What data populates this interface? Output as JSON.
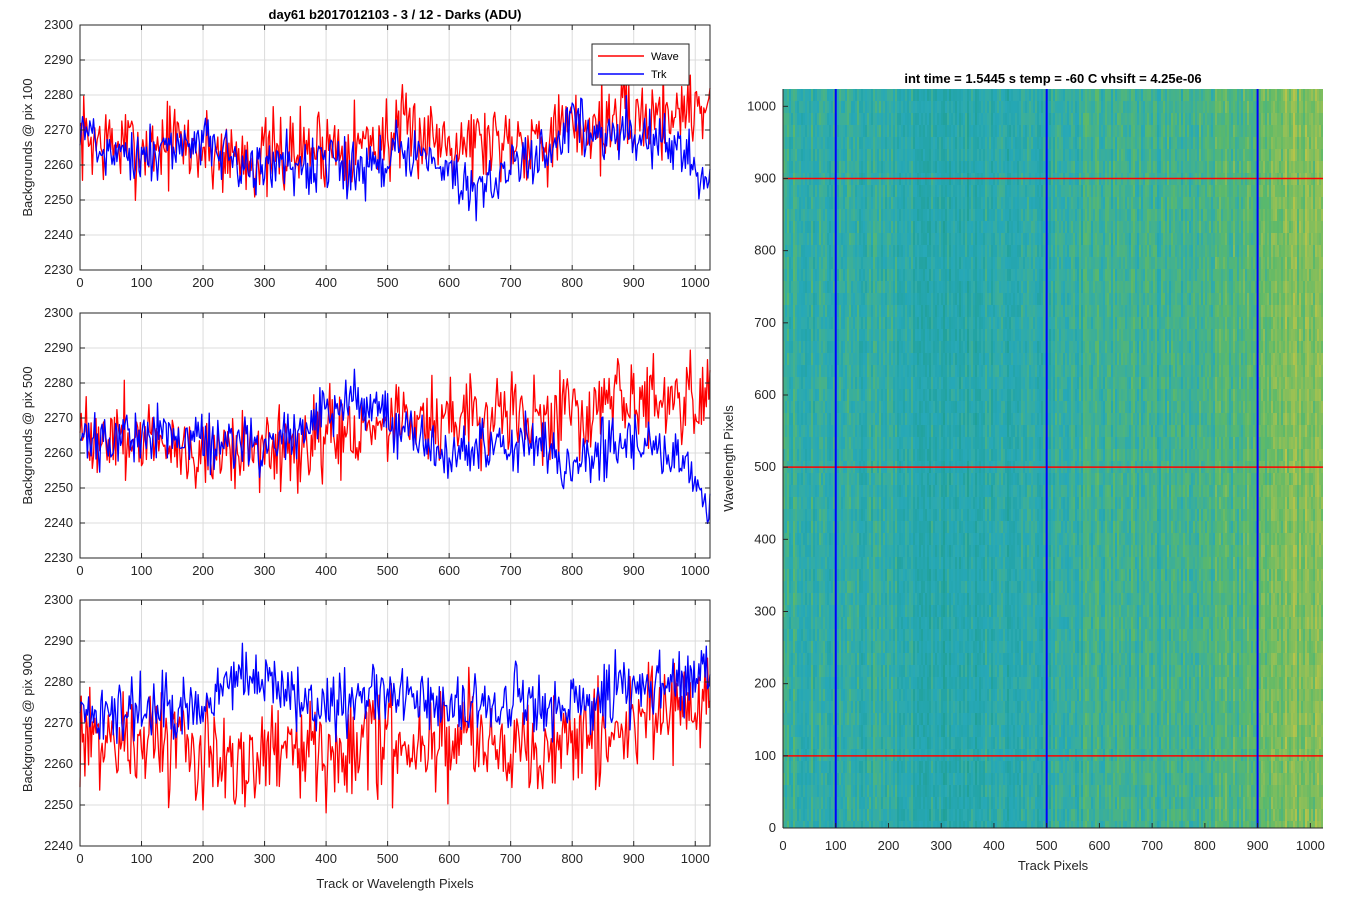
{
  "figure": {
    "title": "day61 b2017012103 - 3 / 12 - Darks (ADU)",
    "xlabel_bottom": "Track or Wavelength Pixels"
  },
  "legend": {
    "items": [
      {
        "label": "Wave",
        "color": "#ff0000"
      },
      {
        "label": "Trk",
        "color": "#0000ff"
      }
    ],
    "placement": "top-right"
  },
  "chart_data": [
    {
      "type": "line",
      "ylabel": "Backgrounds @ pix 100",
      "xlim": [
        0,
        1024
      ],
      "ylim": [
        2230,
        2300
      ],
      "xticks": [
        0,
        100,
        200,
        300,
        400,
        500,
        600,
        700,
        800,
        900,
        1000
      ],
      "yticks": [
        2230,
        2240,
        2250,
        2260,
        2270,
        2280,
        2290,
        2300
      ],
      "grid": true,
      "series": [
        {
          "name": "Wave",
          "color": "#ff0000",
          "x": [
            0,
            50,
            100,
            150,
            200,
            250,
            300,
            350,
            400,
            450,
            500,
            550,
            600,
            650,
            700,
            750,
            800,
            850,
            900,
            950,
            1000,
            1020
          ],
          "values": [
            2268,
            2266,
            2265,
            2267,
            2264,
            2263,
            2262,
            2264,
            2266,
            2266,
            2268,
            2269,
            2268,
            2267,
            2268,
            2268,
            2270,
            2272,
            2273,
            2275,
            2277,
            2278
          ],
          "noise": 6
        },
        {
          "name": "Trk",
          "color": "#0000ff",
          "x": [
            0,
            50,
            100,
            150,
            200,
            250,
            300,
            350,
            400,
            450,
            500,
            550,
            600,
            650,
            700,
            750,
            800,
            850,
            900,
            950,
            1000,
            1020
          ],
          "values": [
            2270,
            2264,
            2262,
            2265,
            2266,
            2263,
            2260,
            2258,
            2262,
            2258,
            2262,
            2264,
            2257,
            2250,
            2262,
            2262,
            2272,
            2266,
            2270,
            2266,
            2260,
            2258
          ],
          "noise": 4
        }
      ]
    },
    {
      "type": "line",
      "ylabel": "Backgrounds @ pix 500",
      "xlim": [
        0,
        1024
      ],
      "ylim": [
        2230,
        2300
      ],
      "xticks": [
        0,
        100,
        200,
        300,
        400,
        500,
        600,
        700,
        800,
        900,
        1000
      ],
      "yticks": [
        2230,
        2240,
        2250,
        2260,
        2270,
        2280,
        2290,
        2300
      ],
      "grid": true,
      "series": [
        {
          "name": "Wave",
          "color": "#ff0000",
          "x": [
            0,
            50,
            100,
            150,
            200,
            250,
            300,
            350,
            400,
            450,
            500,
            550,
            600,
            650,
            700,
            750,
            800,
            850,
            900,
            950,
            1000,
            1020
          ],
          "values": [
            2265,
            2265,
            2264,
            2262,
            2262,
            2262,
            2262,
            2263,
            2265,
            2266,
            2268,
            2270,
            2270,
            2269,
            2270,
            2270,
            2271,
            2272,
            2273,
            2275,
            2276,
            2276
          ],
          "noise": 6
        },
        {
          "name": "Trk",
          "color": "#0000ff",
          "x": [
            0,
            50,
            100,
            150,
            200,
            250,
            300,
            350,
            400,
            450,
            500,
            550,
            600,
            650,
            700,
            750,
            800,
            850,
            900,
            950,
            1000,
            1020
          ],
          "values": [
            2262,
            2263,
            2265,
            2266,
            2264,
            2263,
            2260,
            2265,
            2272,
            2275,
            2270,
            2265,
            2258,
            2262,
            2262,
            2262,
            2255,
            2262,
            2263,
            2262,
            2252,
            2245
          ],
          "noise": 4
        }
      ]
    },
    {
      "type": "line",
      "ylabel": "Backgrounds @ pix 900",
      "xlim": [
        0,
        1024
      ],
      "ylim": [
        2240,
        2300
      ],
      "xticks": [
        0,
        100,
        200,
        300,
        400,
        500,
        600,
        700,
        800,
        900,
        1000
      ],
      "yticks": [
        2240,
        2250,
        2260,
        2270,
        2280,
        2290,
        2300
      ],
      "grid": true,
      "series": [
        {
          "name": "Wave",
          "color": "#ff0000",
          "x": [
            0,
            50,
            100,
            150,
            200,
            250,
            300,
            350,
            400,
            450,
            500,
            550,
            600,
            650,
            700,
            750,
            800,
            850,
            900,
            950,
            1000,
            1020
          ],
          "values": [
            2268,
            2266,
            2265,
            2264,
            2263,
            2262,
            2262,
            2263,
            2264,
            2265,
            2266,
            2266,
            2266,
            2266,
            2264,
            2262,
            2266,
            2268,
            2270,
            2272,
            2274,
            2276
          ],
          "noise": 6
        },
        {
          "name": "Trk",
          "color": "#0000ff",
          "x": [
            0,
            50,
            100,
            150,
            200,
            250,
            300,
            350,
            400,
            450,
            500,
            550,
            600,
            650,
            700,
            750,
            800,
            850,
            900,
            950,
            1000,
            1020
          ],
          "values": [
            2272,
            2272,
            2274,
            2272,
            2272,
            2284,
            2280,
            2276,
            2274,
            2275,
            2278,
            2276,
            2273,
            2275,
            2276,
            2274,
            2274,
            2276,
            2278,
            2280,
            2282,
            2284
          ],
          "noise": 4
        }
      ]
    },
    {
      "type": "heatmap",
      "title": "int time = 1.5445 s    temp = -60 C    vhsift = 4.25e-06",
      "xlabel": "Track Pixels",
      "ylabel": "Wavelength Pixels",
      "xlim": [
        0,
        1024
      ],
      "ylim": [
        0,
        1024
      ],
      "xticks": [
        0,
        100,
        200,
        300,
        400,
        500,
        600,
        700,
        800,
        900,
        1000
      ],
      "yticks": [
        0,
        100,
        200,
        300,
        400,
        500,
        600,
        700,
        800,
        900,
        1000
      ],
      "colormap": [
        "#1f9e89",
        "#26a8b8",
        "#5cb96a",
        "#b6c44a"
      ],
      "column_profile": {
        "x": [
          0,
          100,
          200,
          300,
          400,
          500,
          600,
          700,
          800,
          900,
          950,
          1024
        ],
        "level": [
          0.45,
          0.4,
          0.38,
          0.3,
          0.33,
          0.35,
          0.5,
          0.45,
          0.55,
          0.65,
          0.8,
          0.8
        ]
      },
      "vertical_markers": {
        "color": "#0000ff",
        "x": [
          100,
          500,
          900
        ]
      },
      "horizontal_markers": {
        "color": "#ff0000",
        "y": [
          100,
          500,
          900
        ]
      }
    }
  ]
}
